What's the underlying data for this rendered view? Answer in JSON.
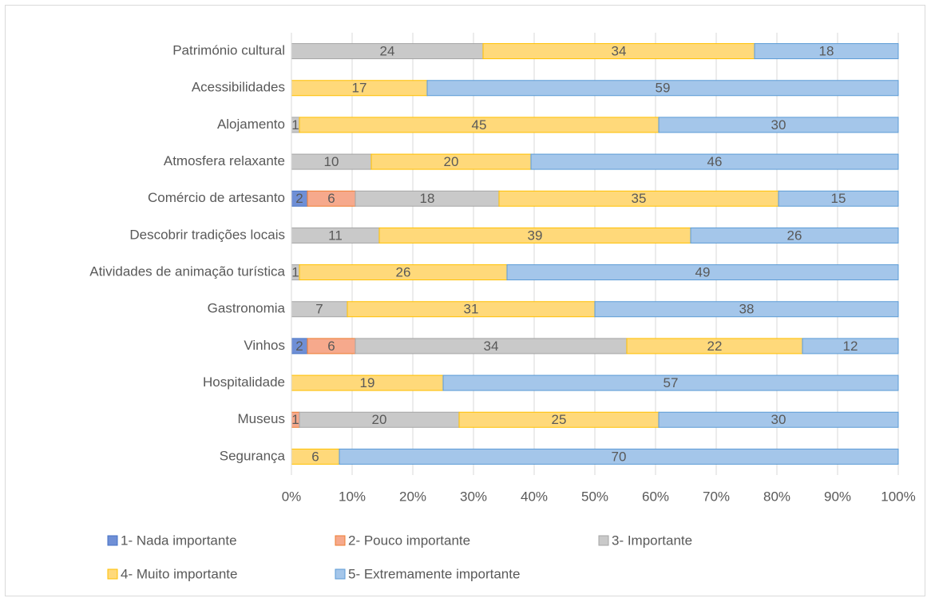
{
  "chart_data": {
    "type": "bar",
    "orientation": "horizontal",
    "stacked": "percent",
    "categories": [
      "Património cultural",
      "Acessibilidades",
      "Alojamento",
      "Atmosfera relaxante",
      "Comércio de artesanto",
      "Descobrir tradições locais",
      "Atividades de animação turística",
      "Gastronomia",
      "Vinhos",
      "Hospitalidade",
      "Museus",
      "Segurança"
    ],
    "series": [
      {
        "name": "1- Nada importante",
        "color": "#6f8fd6",
        "border": "#4472c4",
        "values": [
          0,
          0,
          0,
          0,
          2,
          0,
          0,
          0,
          2,
          0,
          0,
          0
        ]
      },
      {
        "name": "2- Pouco importante",
        "color": "#f6a98c",
        "border": "#ed7d31",
        "values": [
          0,
          0,
          0,
          0,
          6,
          0,
          0,
          0,
          6,
          0,
          1,
          0
        ]
      },
      {
        "name": "3- Importante",
        "color": "#c9c9c9",
        "border": "#a5a5a5",
        "values": [
          24,
          0,
          1,
          10,
          18,
          11,
          1,
          7,
          34,
          0,
          20,
          0
        ]
      },
      {
        "name": "4- Muito importante",
        "color": "#ffd97a",
        "border": "#ffc000",
        "values": [
          34,
          17,
          45,
          20,
          35,
          39,
          26,
          31,
          22,
          19,
          25,
          6
        ]
      },
      {
        "name": "5- Extremamente importante",
        "color": "#a4c6ea",
        "border": "#5b9bd5",
        "values": [
          18,
          59,
          30,
          46,
          15,
          26,
          49,
          38,
          12,
          57,
          30,
          70
        ]
      }
    ],
    "xlim": [
      0,
      100
    ],
    "xticks": [
      {
        "value": 0,
        "label": "0%"
      },
      {
        "value": 10,
        "label": "10%"
      },
      {
        "value": 20,
        "label": "20%"
      },
      {
        "value": 30,
        "label": "30%"
      },
      {
        "value": 40,
        "label": "40%"
      },
      {
        "value": 50,
        "label": "50%"
      },
      {
        "value": 60,
        "label": "60%"
      },
      {
        "value": 70,
        "label": "70%"
      },
      {
        "value": 80,
        "label": "80%"
      },
      {
        "value": 90,
        "label": "90%"
      },
      {
        "value": 100,
        "label": "100%"
      }
    ],
    "grid": true,
    "legend": "bottom"
  }
}
